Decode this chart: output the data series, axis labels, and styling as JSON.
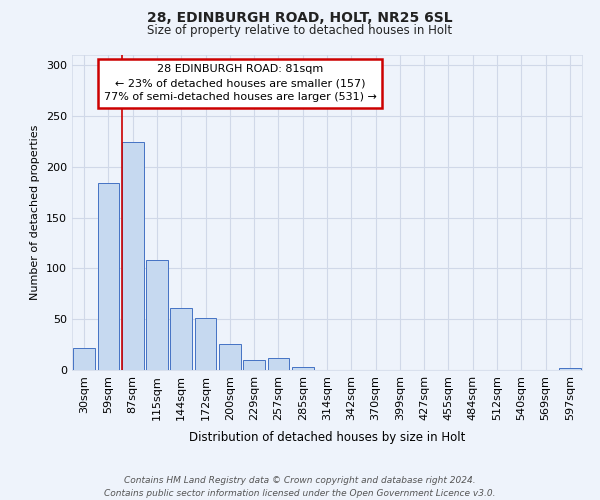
{
  "title1": "28, EDINBURGH ROAD, HOLT, NR25 6SL",
  "title2": "Size of property relative to detached houses in Holt",
  "xlabel": "Distribution of detached houses by size in Holt",
  "ylabel": "Number of detached properties",
  "bar_labels": [
    "30sqm",
    "59sqm",
    "87sqm",
    "115sqm",
    "144sqm",
    "172sqm",
    "200sqm",
    "229sqm",
    "257sqm",
    "285sqm",
    "314sqm",
    "342sqm",
    "370sqm",
    "399sqm",
    "427sqm",
    "455sqm",
    "484sqm",
    "512sqm",
    "540sqm",
    "569sqm",
    "597sqm"
  ],
  "bar_values": [
    22,
    184,
    224,
    108,
    61,
    51,
    26,
    10,
    12,
    3,
    0,
    0,
    0,
    0,
    0,
    0,
    0,
    0,
    0,
    0,
    2
  ],
  "bar_color": "#c6d9f0",
  "bar_edge_color": "#4472c4",
  "bg_color": "#eef3fb",
  "grid_color": "#d0d8e8",
  "vline_index": 2,
  "vline_color": "#cc0000",
  "annotation_line1": "28 EDINBURGH ROAD: 81sqm",
  "annotation_line2": "← 23% of detached houses are smaller (157)",
  "annotation_line3": "77% of semi-detached houses are larger (531) →",
  "annotation_box_color": "#ffffff",
  "annotation_box_edge": "#cc0000",
  "ylim": [
    0,
    310
  ],
  "yticks": [
    0,
    50,
    100,
    150,
    200,
    250,
    300
  ],
  "footnote1": "Contains HM Land Registry data © Crown copyright and database right 2024.",
  "footnote2": "Contains public sector information licensed under the Open Government Licence v3.0."
}
